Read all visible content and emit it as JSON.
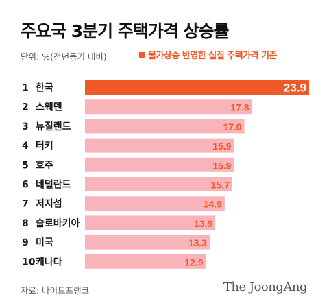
{
  "title": "주요국 3분기 주택가격 상승률",
  "unit_note": "단위: %(전년동기 대비)",
  "legend_label": "물가상승 반영한 실질 주택가격 기준",
  "source": "자료: 나이트프랭크",
  "logo": "The JoongAng",
  "colors": {
    "highlight": "#f05a28",
    "bar": "#f9b3bb",
    "highlight_text": "#ffffff",
    "value_text": "#f05a28",
    "label_text": "#1a1a1a"
  },
  "chart_data": {
    "type": "bar",
    "orientation": "horizontal",
    "categories": [
      "한국",
      "스웨덴",
      "뉴질랜드",
      "터키",
      "호주",
      "네덜란드",
      "저지섬",
      "슬로바키아",
      "미국",
      "캐나다"
    ],
    "ranks": [
      "1",
      "2",
      "3",
      "4",
      "5",
      "6",
      "7",
      "8",
      "9",
      "10"
    ],
    "values": [
      23.9,
      17.8,
      17.0,
      15.9,
      15.9,
      15.7,
      14.9,
      13.9,
      13.3,
      12.9
    ],
    "value_labels": [
      "23.9",
      "17.8",
      "17.0",
      "15.9",
      "15.9",
      "15.7",
      "14.9",
      "13.9",
      "13.3",
      "12.9"
    ],
    "highlight_index": 0,
    "xlim": [
      0,
      23.9
    ],
    "grid": false
  }
}
